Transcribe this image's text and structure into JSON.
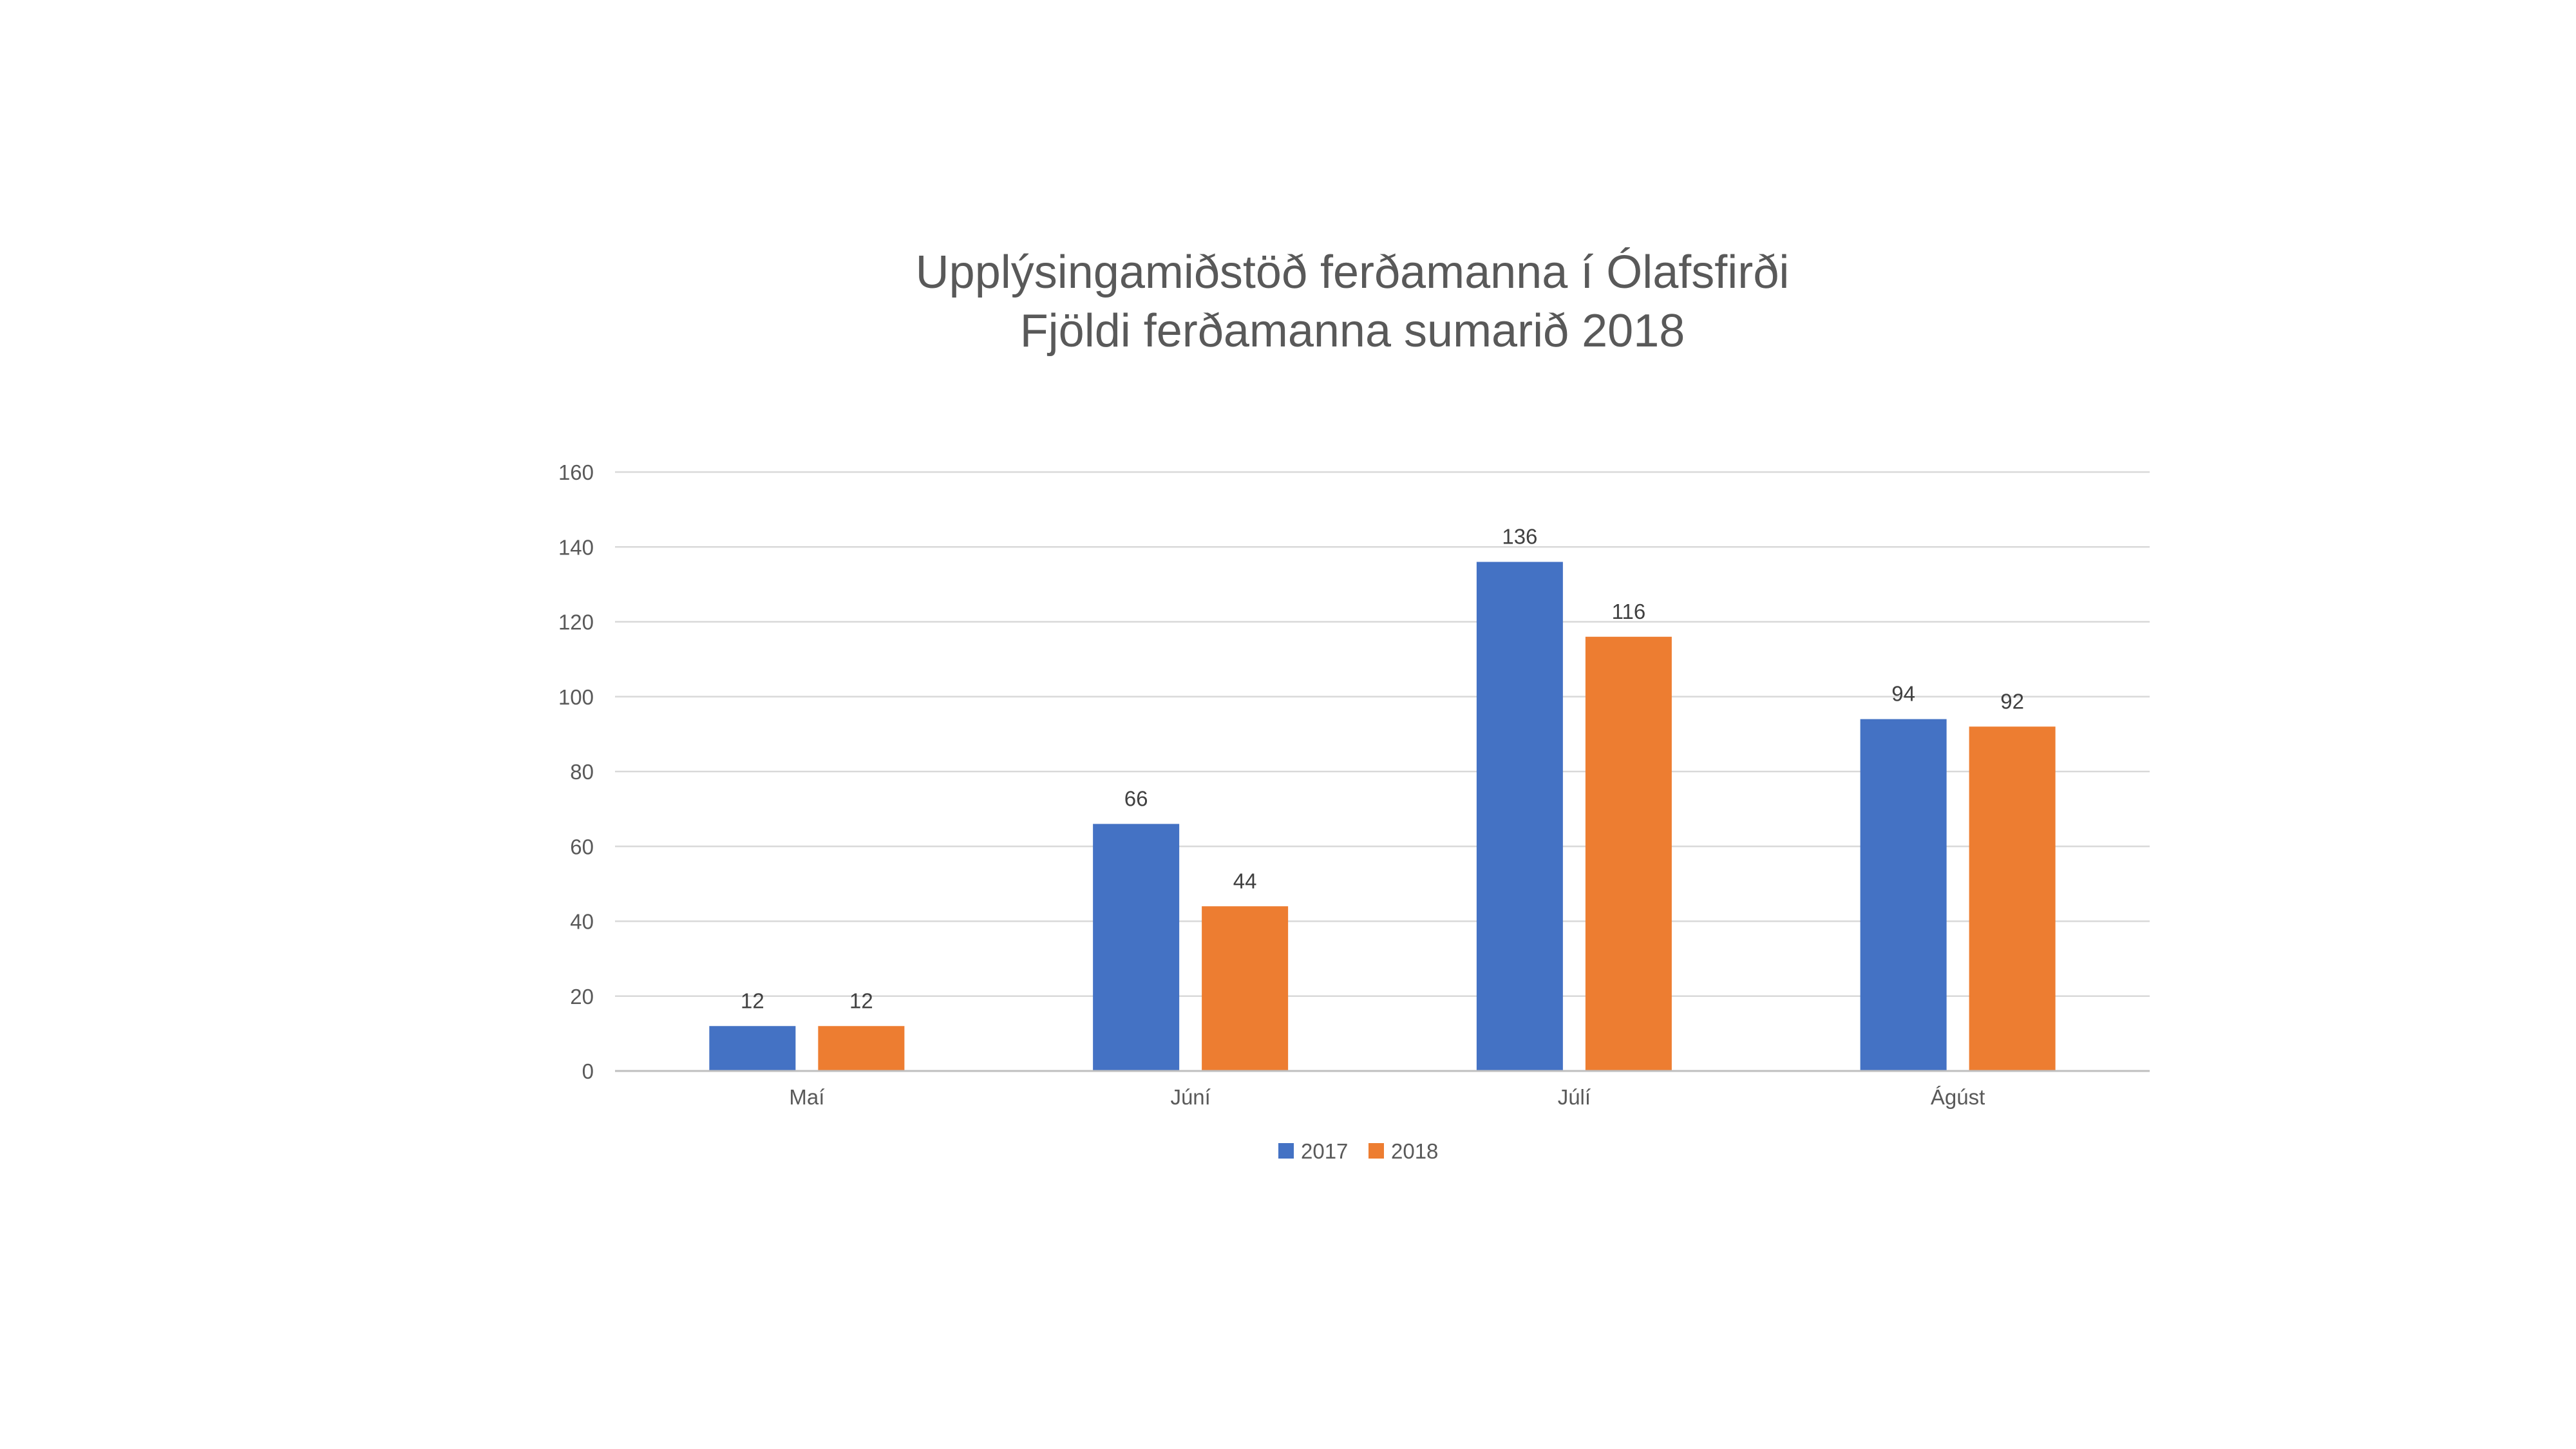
{
  "chart_data": {
    "type": "bar",
    "title": "Upplýsingamiðstöð ferðamanna í Ólafsfirði",
    "subtitle": "Fjöldi ferðamanna sumarið 2018",
    "categories": [
      "Maí",
      "Júní",
      "Júlí",
      "Ágúst"
    ],
    "series": [
      {
        "name": "2017",
        "color": "#4472C4",
        "values": [
          12,
          66,
          136,
          94
        ]
      },
      {
        "name": "2018",
        "color": "#ED7D31",
        "values": [
          12,
          44,
          116,
          92
        ]
      }
    ],
    "yticks": [
      0,
      20,
      40,
      60,
      80,
      100,
      120,
      140,
      160
    ],
    "ylim": [
      0,
      160
    ],
    "xlabel": "",
    "ylabel": "",
    "grid": true,
    "legend": "bottom-center"
  }
}
